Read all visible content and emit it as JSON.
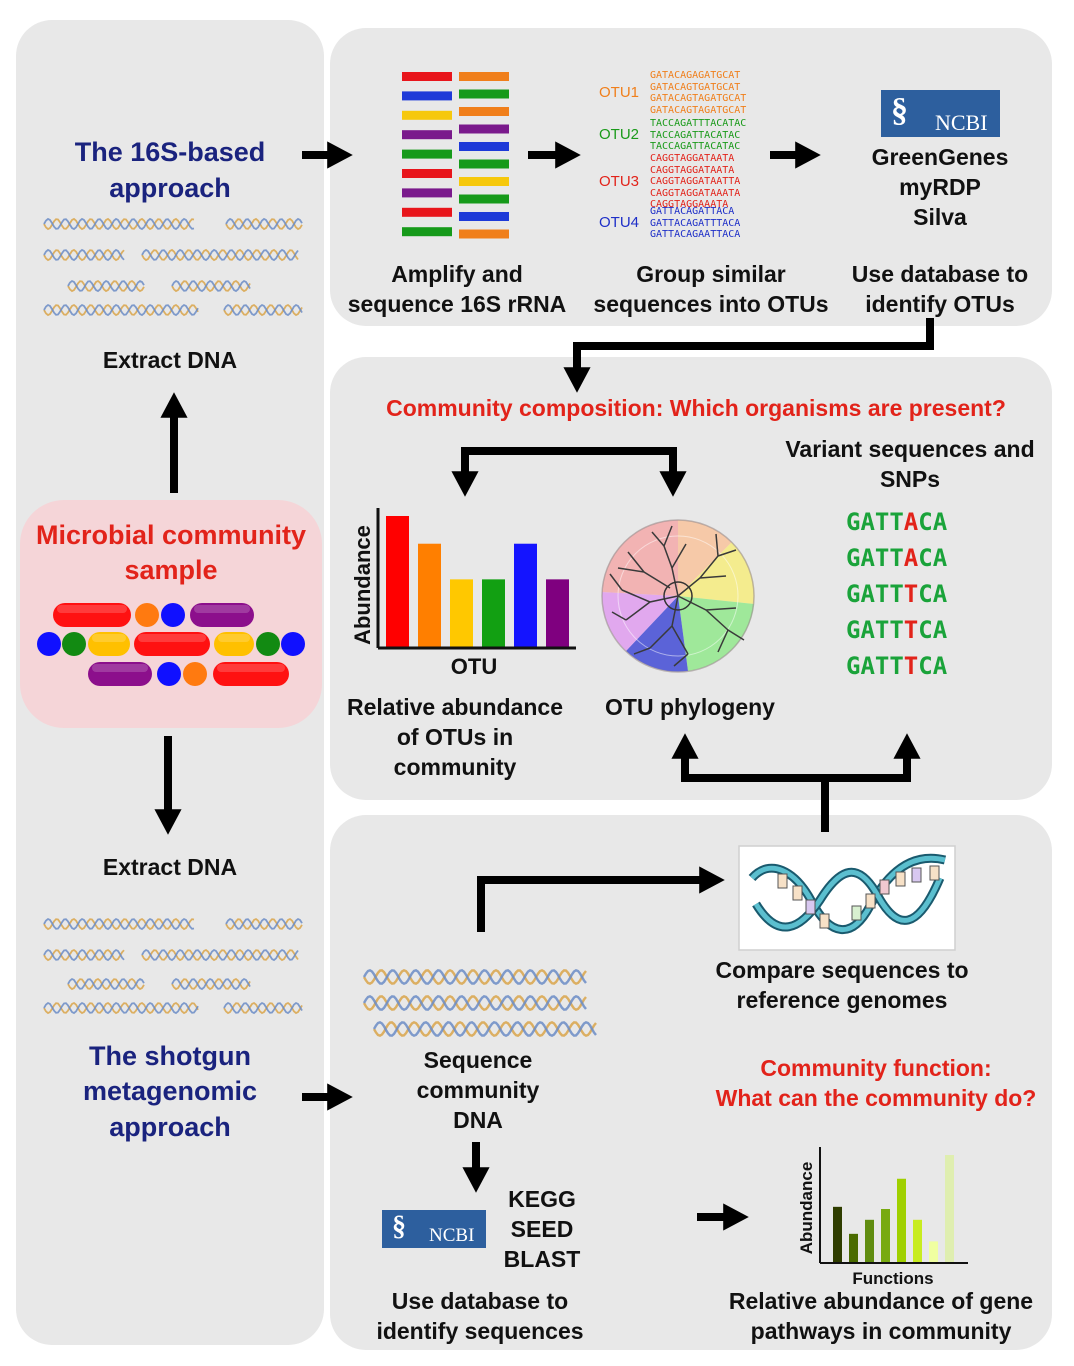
{
  "approach16s": {
    "title_line1": "The 16S-based",
    "title_line2": "approach",
    "extract": "Extract DNA"
  },
  "sample": {
    "title_line1": "Microbial community",
    "title_line2": "sample"
  },
  "shotgun": {
    "extract": "Extract DNA",
    "title_line1": "The shotgun",
    "title_line2": "metagenomic",
    "title_line3": "approach"
  },
  "steps16s": {
    "amplify_line1": "Amplify and",
    "amplify_line2": "sequence 16S rRNA",
    "group_line1": "Group similar",
    "group_line2": "sequences into OTUs",
    "db_line1": "Use database to",
    "db_line2": "identify OTUs",
    "ncbi": "NCBI",
    "databases": [
      "GreenGenes",
      "myRDP",
      "Silva"
    ]
  },
  "otus": [
    {
      "label": "OTU1",
      "color": "#f07f1b",
      "seqs": [
        "GATACAGAGATGCAT",
        "GATACAGTGATGCAT",
        "GATACAGTAGATGCAT",
        "GATACAGTAGATGCAT"
      ]
    },
    {
      "label": "OTU2",
      "color": "#1a9a1a",
      "seqs": [
        "TACCAGATTTACATAC",
        "TACCAGATTACATAC",
        "TACCAGATTACATAC"
      ]
    },
    {
      "label": "OTU3",
      "color": "#e2231a",
      "seqs": [
        "CAGGTAGGATAATA",
        "CAGGTAGGATAATA",
        "CAGGTAGGATAATTA",
        "CAGGTAGGATAAATA",
        "CAGGTAGGAAATA"
      ]
    },
    {
      "label": "OTU4",
      "color": "#1e2fc8",
      "seqs": [
        "GATTACAGATTACA",
        "GATTACAGATTTACA",
        "GATTACAGAATTACA"
      ]
    }
  ],
  "composition": {
    "question": "Community composition: Which organisms are present?",
    "variant_line1": "Variant sequences and",
    "variant_line2": "SNPs",
    "snps": [
      {
        "pre": "GATT",
        "hl": "A",
        "post": "CA"
      },
      {
        "pre": "GATT",
        "hl": "A",
        "post": "CA"
      },
      {
        "pre": "GATT",
        "hl": "T",
        "post": "CA"
      },
      {
        "pre": "GATT",
        "hl": "T",
        "post": "CA"
      },
      {
        "pre": "GATT",
        "hl": "T",
        "post": "CA"
      }
    ],
    "abundance_line1": "Relative abundance",
    "abundance_line2": "of  OTUs in",
    "abundance_line3": "community",
    "phylogeny": "OTU phylogeny"
  },
  "chart_data": [
    {
      "type": "bar",
      "xlabel": "OTU",
      "ylabel": "Abundance",
      "values": [
        100,
        79,
        52,
        52,
        79,
        52
      ],
      "colors": [
        "#ff0000",
        "#ff7f00",
        "#ffc800",
        "#12a012",
        "#1414ff",
        "#7f007f"
      ]
    },
    {
      "type": "bar",
      "xlabel": "Functions",
      "ylabel": "Abundance",
      "values": [
        52,
        27,
        40,
        50,
        78,
        40,
        20,
        100
      ],
      "colors": [
        "#2f3d00",
        "#4a6b00",
        "#608c10",
        "#78aa10",
        "#a0d000",
        "#c8ec20",
        "#f0ffa0",
        "#dfeeb0"
      ]
    }
  ],
  "function": {
    "compare_line1": "Compare sequences to",
    "compare_line2": "reference genomes",
    "sequence_line1": "Sequence",
    "sequence_line2": "community",
    "sequence_line3": "DNA",
    "ncbi": "NCBI",
    "tools": [
      "KEGG",
      "SEED",
      "BLAST"
    ],
    "usedb_line1": "Use database to",
    "usedb_line2": "identify sequences",
    "question_line1": "Community function:",
    "question_line2": "What can the community do?",
    "pathways_line1": "Relative abundance of gene",
    "pathways_line2": "pathways in community"
  },
  "colors": {
    "navy": "#1a237e",
    "red": "#e2231a",
    "panel": "#e8e8e8",
    "sample_bg": "#f5d5d8"
  }
}
